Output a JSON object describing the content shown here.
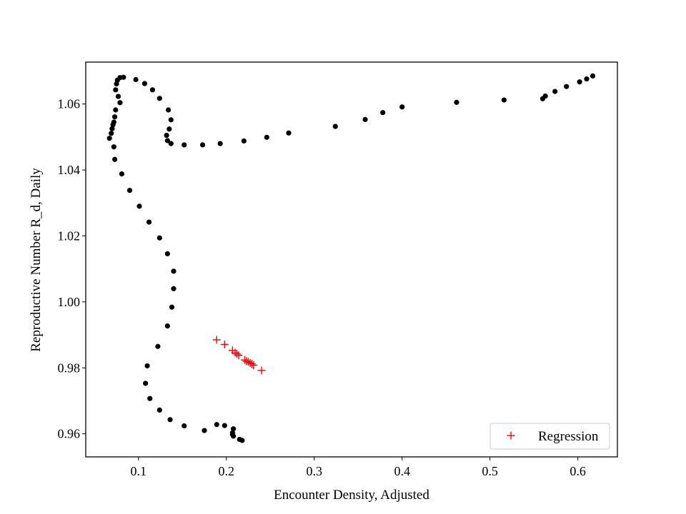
{
  "chart_data": {
    "type": "scatter",
    "title": "",
    "xlabel": "Encounter Density, Adjusted",
    "ylabel": "Reproductive Number R_d, Daily",
    "xlim": [
      0.04,
      0.645
    ],
    "ylim": [
      0.953,
      1.0727
    ],
    "xticks": [
      0.1,
      0.2,
      0.3,
      0.4,
      0.5,
      0.6
    ],
    "xtick_labels": [
      "0.1",
      "0.2",
      "0.3",
      "0.4",
      "0.5",
      "0.6"
    ],
    "yticks": [
      0.96,
      0.98,
      1.0,
      1.02,
      1.04,
      1.06
    ],
    "ytick_labels": [
      "0.96",
      "0.98",
      "1.00",
      "1.02",
      "1.04",
      "1.06"
    ],
    "grid": false,
    "legend": {
      "position": "lower-right",
      "entries": [
        "Regression"
      ]
    },
    "series": [
      {
        "marker": "dot",
        "color": "#000000",
        "points": [
          [
            0.218,
            0.958
          ],
          [
            0.215,
            0.9583
          ],
          [
            0.208,
            0.9593
          ],
          [
            0.207,
            0.9598
          ],
          [
            0.207,
            0.9603
          ],
          [
            0.208,
            0.9615
          ],
          [
            0.198,
            0.9625
          ],
          [
            0.189,
            0.9628
          ],
          [
            0.175,
            0.961
          ],
          [
            0.152,
            0.9624
          ],
          [
            0.136,
            0.9643
          ],
          [
            0.124,
            0.9672
          ],
          [
            0.113,
            0.9707
          ],
          [
            0.108,
            0.9753
          ],
          [
            0.11,
            0.9806
          ],
          [
            0.122,
            0.9865
          ],
          [
            0.133,
            0.9927
          ],
          [
            0.138,
            0.9984
          ],
          [
            0.14,
            1.004
          ],
          [
            0.14,
            1.0093
          ],
          [
            0.133,
            1.0146
          ],
          [
            0.124,
            1.0194
          ],
          [
            0.112,
            1.0242
          ],
          [
            0.101,
            1.029
          ],
          [
            0.09,
            1.0338
          ],
          [
            0.081,
            1.0388
          ],
          [
            0.073,
            1.0432
          ],
          [
            0.072,
            1.047
          ],
          [
            0.067,
            1.0496
          ],
          [
            0.069,
            1.0511
          ],
          [
            0.07,
            1.0525
          ],
          [
            0.071,
            1.0537
          ],
          [
            0.072,
            1.0545
          ],
          [
            0.073,
            1.0561
          ],
          [
            0.074,
            1.0582
          ],
          [
            0.079,
            1.0604
          ],
          [
            0.077,
            1.0623
          ],
          [
            0.074,
            1.0643
          ],
          [
            0.075,
            1.0661
          ],
          [
            0.076,
            1.0672
          ],
          [
            0.079,
            1.068
          ],
          [
            0.083,
            1.0681
          ],
          [
            0.097,
            1.0674
          ],
          [
            0.107,
            1.0662
          ],
          [
            0.116,
            1.0643
          ],
          [
            0.124,
            1.0617
          ],
          [
            0.134,
            1.0582
          ],
          [
            0.137,
            1.0552
          ],
          [
            0.135,
            1.0524
          ],
          [
            0.132,
            1.0505
          ],
          [
            0.133,
            1.0489
          ],
          [
            0.137,
            1.048
          ],
          [
            0.152,
            1.0476
          ],
          [
            0.173,
            1.0476
          ],
          [
            0.193,
            1.048
          ],
          [
            0.22,
            1.0488
          ],
          [
            0.246,
            1.0499
          ],
          [
            0.271,
            1.0512
          ],
          [
            0.324,
            1.0532
          ],
          [
            0.358,
            1.0553
          ],
          [
            0.378,
            1.0574
          ],
          [
            0.4,
            1.0591
          ],
          [
            0.462,
            1.0605
          ],
          [
            0.516,
            1.0612
          ],
          [
            0.56,
            1.0616
          ],
          [
            0.563,
            1.0624
          ],
          [
            0.574,
            1.0638
          ],
          [
            0.587,
            1.0653
          ],
          [
            0.602,
            1.0667
          ],
          [
            0.61,
            1.0676
          ],
          [
            0.617,
            1.0685
          ]
        ]
      },
      {
        "name": "Regression",
        "marker": "plus",
        "color": "#ff0000",
        "points": [
          [
            0.189,
            0.9885
          ],
          [
            0.198,
            0.9871
          ],
          [
            0.207,
            0.9853
          ],
          [
            0.21,
            0.9846
          ],
          [
            0.212,
            0.9842
          ],
          [
            0.214,
            0.9838
          ],
          [
            0.221,
            0.9824
          ],
          [
            0.223,
            0.982
          ],
          [
            0.225,
            0.9818
          ],
          [
            0.227,
            0.9815
          ],
          [
            0.229,
            0.9812
          ],
          [
            0.231,
            0.9808
          ],
          [
            0.24,
            0.9792
          ]
        ]
      }
    ]
  }
}
